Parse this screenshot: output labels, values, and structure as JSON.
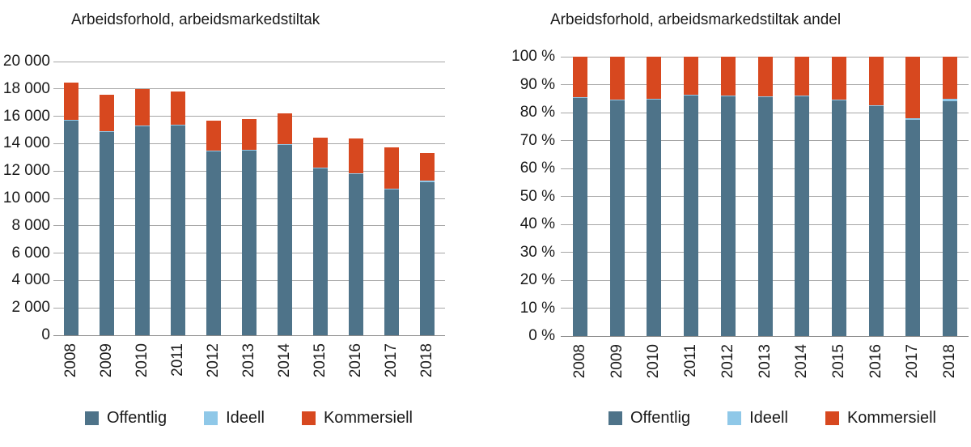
{
  "figure": {
    "background": "#ffffff"
  },
  "colors": {
    "offentlig": "#4e7389",
    "ideell": "#8fc8e8",
    "kommersiell": "#d7481f",
    "gridline": "#a6a6a6",
    "baseline": "#8c8c8c",
    "text": "#1a1a1a"
  },
  "chart_data": [
    {
      "type": "bar",
      "stacked": true,
      "title": "Arbeidsforhold, arbeidsmarkedstiltak",
      "categories": [
        "2008",
        "2009",
        "2010",
        "2011",
        "2012",
        "2013",
        "2014",
        "2015",
        "2016",
        "2017",
        "2018"
      ],
      "series": [
        {
          "name": "Offentlig",
          "color": "#4e7389",
          "values": [
            15700,
            14850,
            15250,
            15350,
            13450,
            13500,
            13900,
            12200,
            11800,
            10650,
            11200
          ]
        },
        {
          "name": "Ideell",
          "color": "#8fc8e8",
          "values": [
            50,
            50,
            50,
            50,
            50,
            50,
            50,
            50,
            60,
            70,
            80
          ]
        },
        {
          "name": "Kommersiell",
          "color": "#d7481f",
          "values": [
            2700,
            2700,
            2700,
            2400,
            2200,
            2250,
            2250,
            2200,
            2490,
            3030,
            2020
          ]
        }
      ],
      "totals": [
        18450,
        17600,
        18000,
        17800,
        15700,
        15800,
        16200,
        14450,
        14350,
        13750,
        13300
      ],
      "ylim": [
        0,
        20000
      ],
      "ytick_values": [
        0,
        2000,
        4000,
        6000,
        8000,
        10000,
        12000,
        14000,
        16000,
        18000,
        20000
      ],
      "ytick_labels": [
        "0",
        "2 000",
        "4 000",
        "6 000",
        "8 000",
        "10 000",
        "12 000",
        "14 000",
        "16 000",
        "18 000",
        "20 000"
      ],
      "grid": true,
      "legend_position": "bottom"
    },
    {
      "type": "bar",
      "stacked": true,
      "percent": true,
      "title": "Arbeidsforhold, arbeidsmarkedstiltak andel",
      "categories": [
        "2008",
        "2009",
        "2010",
        "2011",
        "2012",
        "2013",
        "2014",
        "2015",
        "2016",
        "2017",
        "2018"
      ],
      "series": [
        {
          "name": "Offentlig",
          "color": "#4e7389",
          "values": [
            85.1,
            84.4,
            84.7,
            86.2,
            85.7,
            85.4,
            85.8,
            84.4,
            82.2,
            77.5,
            84.2
          ]
        },
        {
          "name": "Ideell",
          "color": "#8fc8e8",
          "values": [
            0.3,
            0.3,
            0.3,
            0.3,
            0.3,
            0.3,
            0.3,
            0.3,
            0.4,
            0.5,
            0.6
          ]
        },
        {
          "name": "Kommersiell",
          "color": "#d7481f",
          "values": [
            14.6,
            15.3,
            15.0,
            13.5,
            14.0,
            14.3,
            13.9,
            15.3,
            17.4,
            22.0,
            15.2
          ]
        }
      ],
      "ylim": [
        0,
        100
      ],
      "ytick_values": [
        0,
        10,
        20,
        30,
        40,
        50,
        60,
        70,
        80,
        90,
        100
      ],
      "ytick_labels": [
        "0 %",
        "10 %",
        "20 %",
        "30 %",
        "40 %",
        "50 %",
        "60 %",
        "70 %",
        "80 %",
        "90 %",
        "100 %"
      ],
      "grid": true,
      "legend_position": "bottom"
    }
  ]
}
